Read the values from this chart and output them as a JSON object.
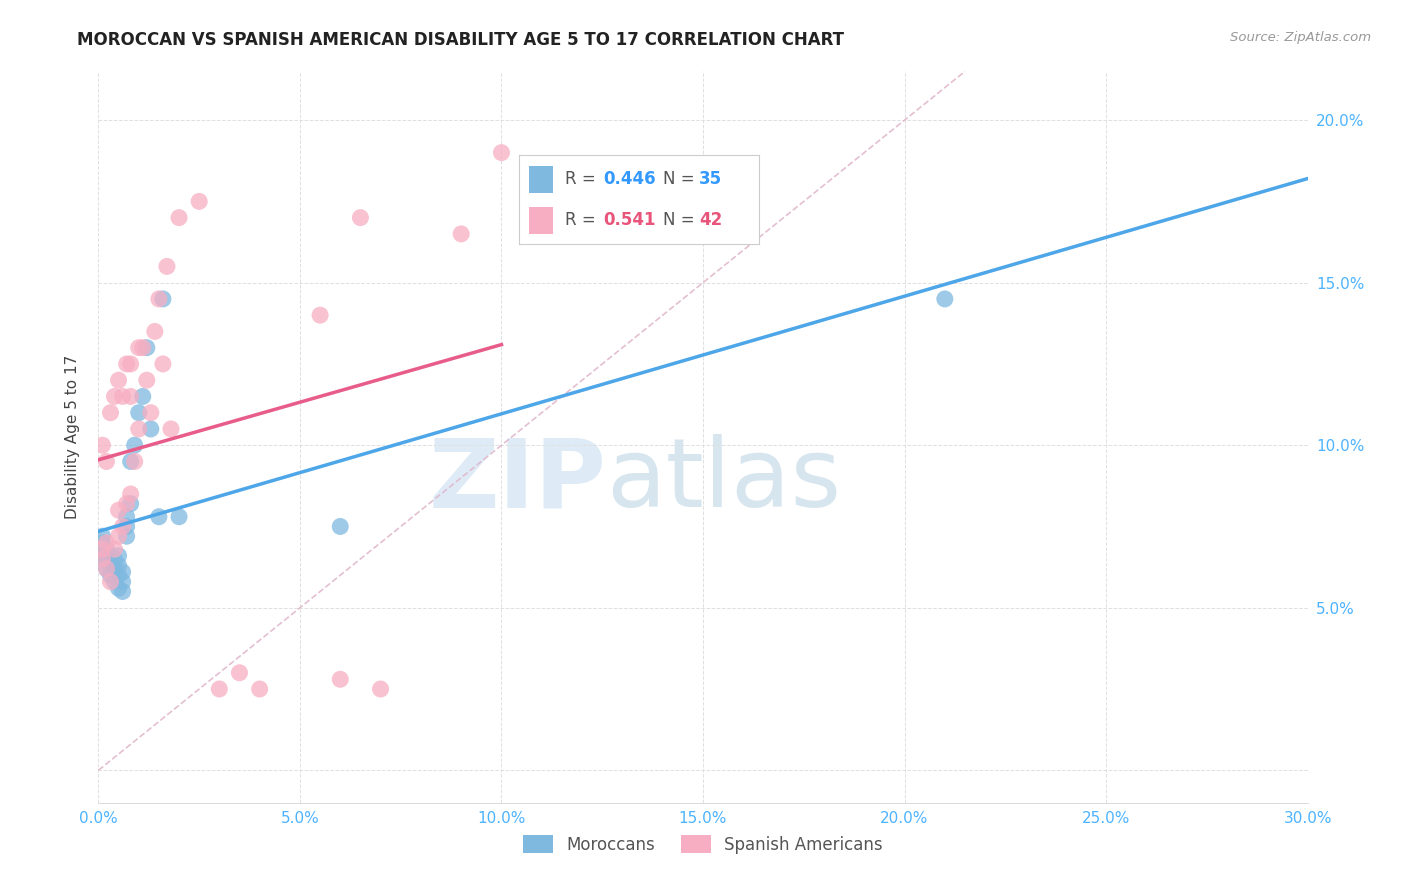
{
  "title": "MOROCCAN VS SPANISH AMERICAN DISABILITY AGE 5 TO 17 CORRELATION CHART",
  "source": "Source: ZipAtlas.com",
  "ylabel": "Disability Age 5 to 17",
  "xlim": [
    0.0,
    0.3
  ],
  "ylim": [
    -0.01,
    0.215
  ],
  "xticks": [
    0.0,
    0.05,
    0.1,
    0.15,
    0.2,
    0.25,
    0.3
  ],
  "xtick_labels": [
    "0.0%",
    "5.0%",
    "10.0%",
    "15.0%",
    "20.0%",
    "25.0%",
    "30.0%"
  ],
  "yticks": [
    0.0,
    0.05,
    0.1,
    0.15,
    0.2
  ],
  "ytick_labels_right": [
    "",
    "5.0%",
    "10.0%",
    "15.0%",
    "20.0%"
  ],
  "legend_blue_R": "0.446",
  "legend_blue_N": "35",
  "legend_pink_R": "0.541",
  "legend_pink_N": "42",
  "legend_labels": [
    "Moroccans",
    "Spanish Americans"
  ],
  "blue_color": "#7fb9e0",
  "pink_color": "#f7aec2",
  "blue_line_color": "#4da6e8",
  "pink_line_color": "#e85c8a",
  "dashed_line_color": "#e0b8cc",
  "watermark_zip": "ZIP",
  "watermark_atlas": "atlas",
  "background_color": "#ffffff",
  "grid_color": "#e0e0e0",
  "moroccan_x": [
    0.001,
    0.001,
    0.001,
    0.001,
    0.002,
    0.002,
    0.002,
    0.003,
    0.003,
    0.003,
    0.004,
    0.004,
    0.004,
    0.005,
    0.005,
    0.005,
    0.005,
    0.006,
    0.006,
    0.006,
    0.007,
    0.007,
    0.007,
    0.008,
    0.008,
    0.009,
    0.01,
    0.011,
    0.012,
    0.013,
    0.015,
    0.016,
    0.02,
    0.06,
    0.21
  ],
  "moroccan_y": [
    0.065,
    0.068,
    0.07,
    0.072,
    0.062,
    0.065,
    0.068,
    0.06,
    0.063,
    0.066,
    0.058,
    0.062,
    0.065,
    0.056,
    0.06,
    0.063,
    0.066,
    0.055,
    0.058,
    0.061,
    0.072,
    0.075,
    0.078,
    0.082,
    0.095,
    0.1,
    0.11,
    0.115,
    0.13,
    0.105,
    0.078,
    0.145,
    0.078,
    0.075,
    0.145
  ],
  "spanish_x": [
    0.001,
    0.001,
    0.001,
    0.002,
    0.002,
    0.002,
    0.003,
    0.003,
    0.004,
    0.004,
    0.005,
    0.005,
    0.005,
    0.006,
    0.006,
    0.007,
    0.007,
    0.008,
    0.008,
    0.008,
    0.009,
    0.01,
    0.01,
    0.011,
    0.012,
    0.013,
    0.014,
    0.015,
    0.016,
    0.017,
    0.018,
    0.02,
    0.025,
    0.03,
    0.035,
    0.04,
    0.055,
    0.06,
    0.065,
    0.07,
    0.09,
    0.1
  ],
  "spanish_y": [
    0.065,
    0.068,
    0.1,
    0.062,
    0.07,
    0.095,
    0.058,
    0.11,
    0.068,
    0.115,
    0.072,
    0.08,
    0.12,
    0.075,
    0.115,
    0.082,
    0.125,
    0.085,
    0.115,
    0.125,
    0.095,
    0.105,
    0.13,
    0.13,
    0.12,
    0.11,
    0.135,
    0.145,
    0.125,
    0.155,
    0.105,
    0.17,
    0.175,
    0.025,
    0.03,
    0.025,
    0.14,
    0.028,
    0.17,
    0.025,
    0.165,
    0.19
  ]
}
